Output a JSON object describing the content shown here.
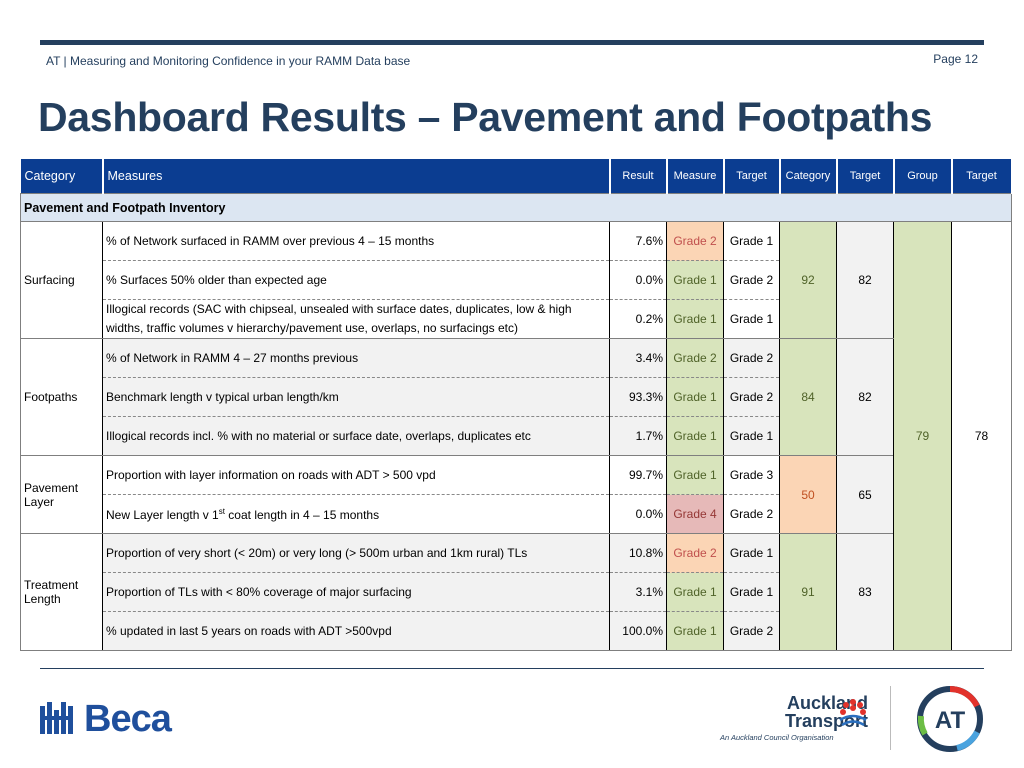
{
  "header": {
    "left_text": "AT | Measuring and Monitoring Confidence in your RAMM Data base",
    "page": "Page 12"
  },
  "title": "Dashboard Results – Pavement and Footpaths",
  "table": {
    "columns": {
      "category": "Category",
      "measures": "Measures",
      "result": "Result",
      "measure": "Measure",
      "target": "Target",
      "category_score": "Category",
      "category_target": "Target",
      "group": "Group",
      "group_target": "Target"
    },
    "section": "Pavement and Footpath Inventory",
    "group_score": "79",
    "group_target": "78",
    "categories": [
      {
        "name": "Surfacing",
        "score": "92",
        "target": "82",
        "rows": [
          {
            "measure": "% of Network surfaced in RAMM over previous 4 – 15 months",
            "result": "7.6%",
            "grade": "Grade 2",
            "target": "Grade 1"
          },
          {
            "measure": "% Surfaces 50% older than expected age",
            "result": "0.0%",
            "grade": "Grade 1",
            "target": "Grade 2"
          },
          {
            "measure": "Illogical records (SAC with chipseal, unsealed with surface dates, duplicates, low & high widths, traffic volumes v hierarchy/pavement use, overlaps, no surfacings etc)",
            "result": "0.2%",
            "grade": "Grade 1",
            "target": "Grade 1"
          }
        ]
      },
      {
        "name": "Footpaths",
        "score": "84",
        "target": "82",
        "rows": [
          {
            "measure": "% of Network in RAMM 4 – 27 months previous",
            "result": "3.4%",
            "grade": "Grade 2",
            "target": "Grade 2"
          },
          {
            "measure": "Benchmark length v typical urban length/km",
            "result": "93.3%",
            "grade": "Grade 1",
            "target": "Grade 2"
          },
          {
            "measure": "Illogical records incl. % with no material or surface date, overlaps, duplicates etc",
            "result": "1.7%",
            "grade": "Grade 1",
            "target": "Grade 1"
          }
        ]
      },
      {
        "name": "Pavement Layer",
        "score": "50",
        "target": "65",
        "rows": [
          {
            "measure": "Proportion with layer information on roads with ADT > 500 vpd",
            "result": "99.7%",
            "grade": "Grade 1",
            "target": "Grade 3"
          },
          {
            "measure_prefix": "New Layer length v 1",
            "measure_sup": "st",
            "measure_suffix": " coat length in 4 – 15 months",
            "result": "0.0%",
            "grade": "Grade 4",
            "target": "Grade 2"
          }
        ]
      },
      {
        "name": "Treatment Length",
        "score": "91",
        "target": "83",
        "rows": [
          {
            "measure": "Proportion of very short (< 20m) or very long (> 500m urban and 1km rural) TLs",
            "result": "10.8%",
            "grade": "Grade 2",
            "target": "Grade 1"
          },
          {
            "measure": "Proportion of TLs with < 80% coverage of major surfacing",
            "result": "3.1%",
            "grade": "Grade 1",
            "target": "Grade 1"
          },
          {
            "measure": "% updated in last 5 years on roads with ADT >500vpd",
            "result": "100.0%",
            "grade": "Grade 1",
            "target": "Grade 2"
          }
        ]
      }
    ]
  },
  "footer": {
    "beca_logo": "Beca",
    "at_line1": "Auckland",
    "at_line2": "Transport",
    "at_sub": "An Auckland Council Organisation",
    "at_mark": "AT"
  },
  "colors": {
    "brand_navy": "#243f5e",
    "header_blue": "#0b3d91",
    "grade_good": "#d8e4bc",
    "grade_mid": "#fbd5b5",
    "grade_bad": "#e6b9b8"
  }
}
